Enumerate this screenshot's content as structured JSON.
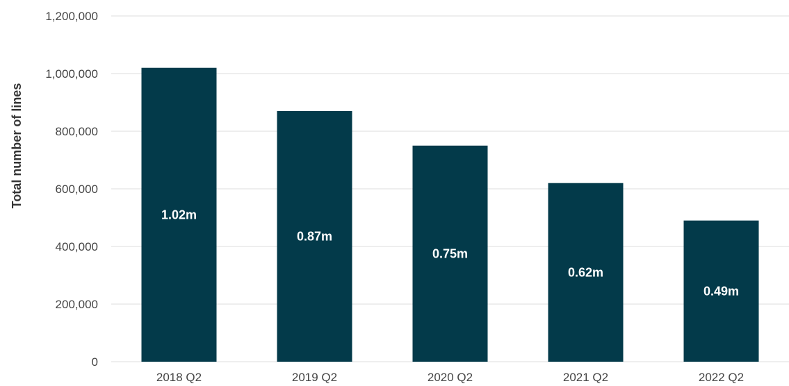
{
  "chart_data": {
    "type": "bar",
    "title": "",
    "xlabel": "",
    "ylabel": "Total number of lines",
    "categories": [
      "2018 Q2",
      "2019 Q2",
      "2020 Q2",
      "2021 Q2",
      "2022 Q2"
    ],
    "values": [
      1020000,
      870000,
      750000,
      620000,
      490000
    ],
    "data_labels": [
      "1.02m",
      "0.87m",
      "0.75m",
      "0.62m",
      "0.49m"
    ],
    "ylim": [
      0,
      1200000
    ],
    "yticks": [
      0,
      200000,
      400000,
      600000,
      800000,
      1000000,
      1200000
    ],
    "ytick_labels": [
      "0",
      "200,000",
      "400,000",
      "600,000",
      "800,000",
      "1,000,000",
      "1,200,000"
    ],
    "grid": true,
    "legend": "none",
    "colors": {
      "bar": "#033a4a",
      "grid": "#e3e3e3",
      "label": "#ffffff"
    }
  }
}
